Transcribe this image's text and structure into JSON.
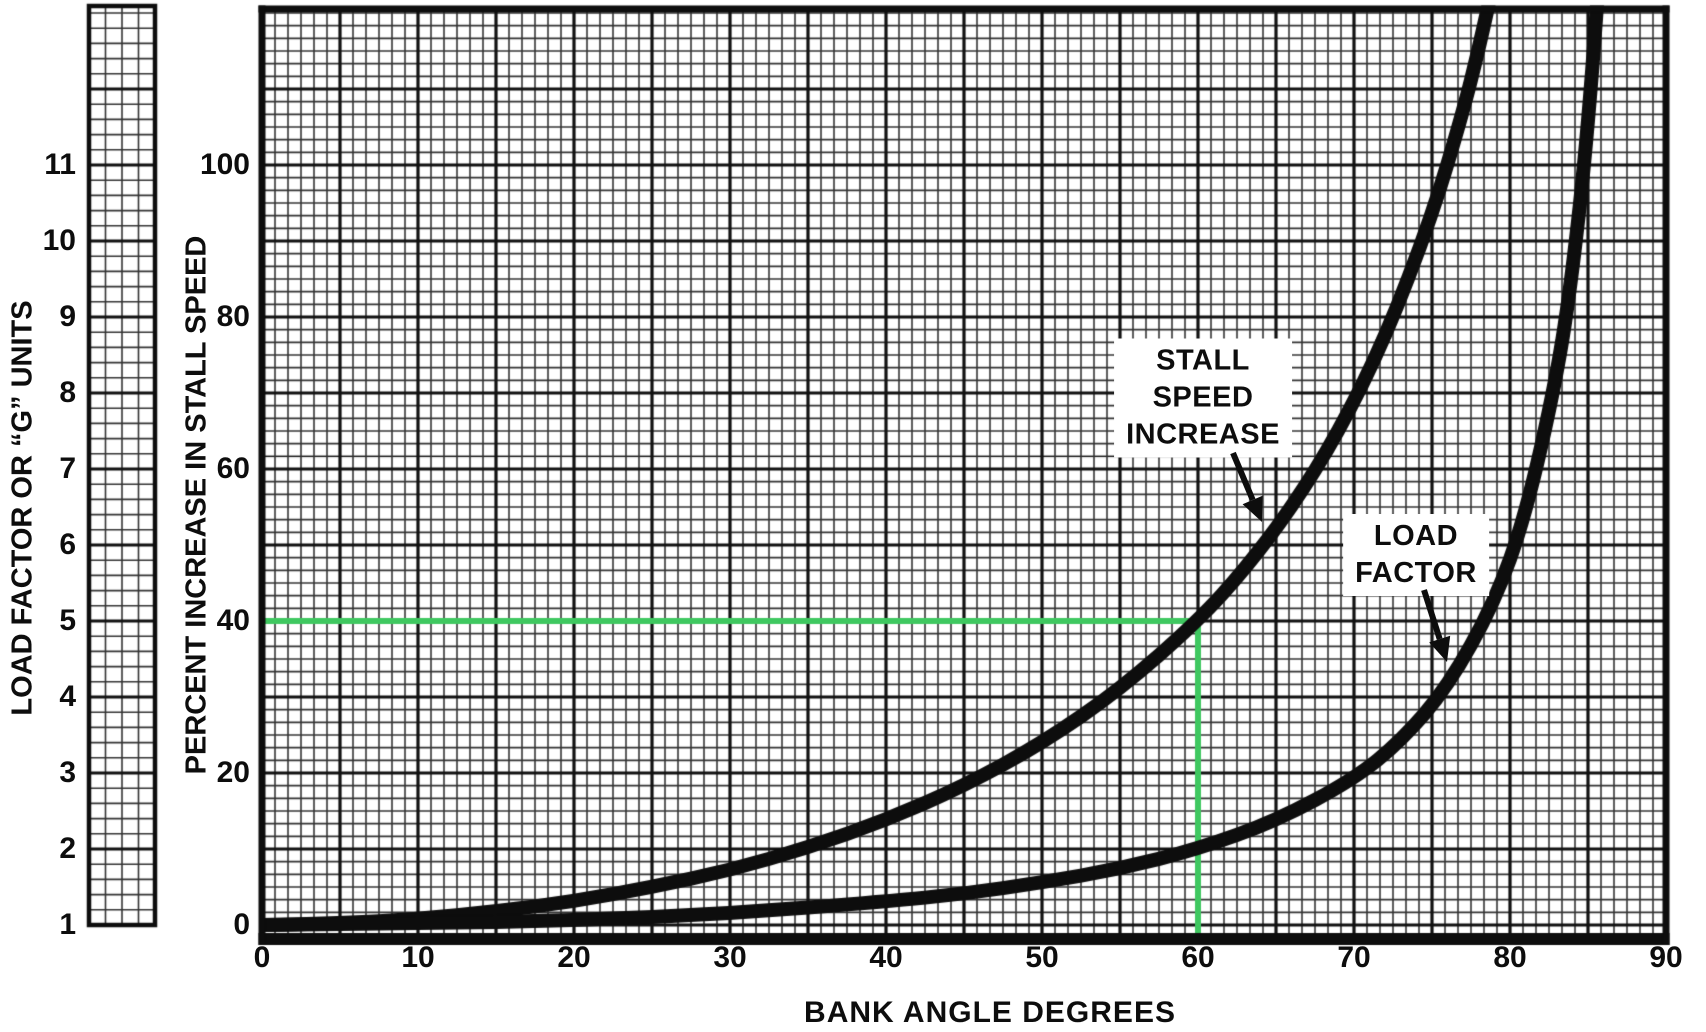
{
  "chart_data": {
    "type": "line",
    "title": "",
    "xlabel": "BANK ANGLE DEGREES",
    "ylabel": "PERCENT INCREASE IN STALL SPEED",
    "y2label": "LOAD FACTOR OR “G” UNITS",
    "xlim": [
      0,
      90
    ],
    "ylim_percent": [
      0,
      120
    ],
    "y2lim_load_factor": [
      1,
      13
    ],
    "x_ticks": [
      0,
      10,
      20,
      30,
      40,
      50,
      60,
      70,
      80,
      90
    ],
    "y_ticks_percent": [
      0,
      20,
      40,
      60,
      80,
      100
    ],
    "y2_ticks_load_factor": [
      1,
      2,
      3,
      4,
      5,
      6,
      7,
      8,
      9,
      10,
      11
    ],
    "grid": "fine graph-paper grid on, major line every 5 degrees and every 10 percent",
    "legend_position": "inline labels with arrows, no legend box",
    "load_factor_to_percent_mapping": "percent_axis_value = (load_factor - 1) * 10",
    "series": [
      {
        "name": "STALL SPEED INCREASE",
        "unit": "percent increase in stall speed",
        "points_deg_percent": [
          [
            0,
            0
          ],
          [
            5,
            0.2
          ],
          [
            10,
            0.8
          ],
          [
            15,
            1.8
          ],
          [
            20,
            3.1
          ],
          [
            25,
            5.0
          ],
          [
            30,
            7.2
          ],
          [
            35,
            10.2
          ],
          [
            40,
            13.8
          ],
          [
            45,
            18.3
          ],
          [
            50,
            23.9
          ],
          [
            55,
            31.0
          ],
          [
            60,
            40.0
          ],
          [
            63,
            46.8
          ],
          [
            66,
            54.9
          ],
          [
            69,
            64.8
          ],
          [
            72,
            77.2
          ],
          [
            75,
            93.3
          ],
          [
            77,
            107.1
          ],
          [
            78,
            115.3
          ],
          [
            79,
            124.6
          ]
        ]
      },
      {
        "name": "LOAD FACTOR",
        "unit": "g units",
        "points_deg_g": [
          [
            0,
            1.0
          ],
          [
            10,
            1.02
          ],
          [
            20,
            1.06
          ],
          [
            30,
            1.15
          ],
          [
            40,
            1.31
          ],
          [
            45,
            1.41
          ],
          [
            50,
            1.56
          ],
          [
            55,
            1.74
          ],
          [
            60,
            2.0
          ],
          [
            65,
            2.37
          ],
          [
            70,
            2.92
          ],
          [
            73,
            3.42
          ],
          [
            76,
            4.13
          ],
          [
            79,
            5.24
          ],
          [
            81,
            6.39
          ],
          [
            83,
            8.21
          ],
          [
            84,
            9.57
          ],
          [
            85,
            11.47
          ],
          [
            86,
            14.3
          ]
        ]
      }
    ],
    "reference_lines": [
      {
        "type": "horizontal",
        "percent": 40,
        "from_deg": 0,
        "to_deg": 60,
        "color": "#3fc860"
      },
      {
        "type": "vertical",
        "deg": 60,
        "from_percent": 40,
        "to_percent": 0,
        "color": "#3fc860"
      }
    ],
    "reading": "at 60 degrees of bank the stall speed increases about 40 percent and the load factor is 2 g"
  },
  "annotations": {
    "stall_label_lines": [
      "STALL",
      "SPEED",
      "INCREASE"
    ],
    "load_label_lines": [
      "LOAD",
      "FACTOR"
    ]
  },
  "colors": {
    "background": "#ffffff",
    "ink": "#0d0d0d",
    "grid_minor": "#333333",
    "grid_major": "#111111",
    "reference_green": "#3fc860",
    "label_box": "#ffffff"
  }
}
